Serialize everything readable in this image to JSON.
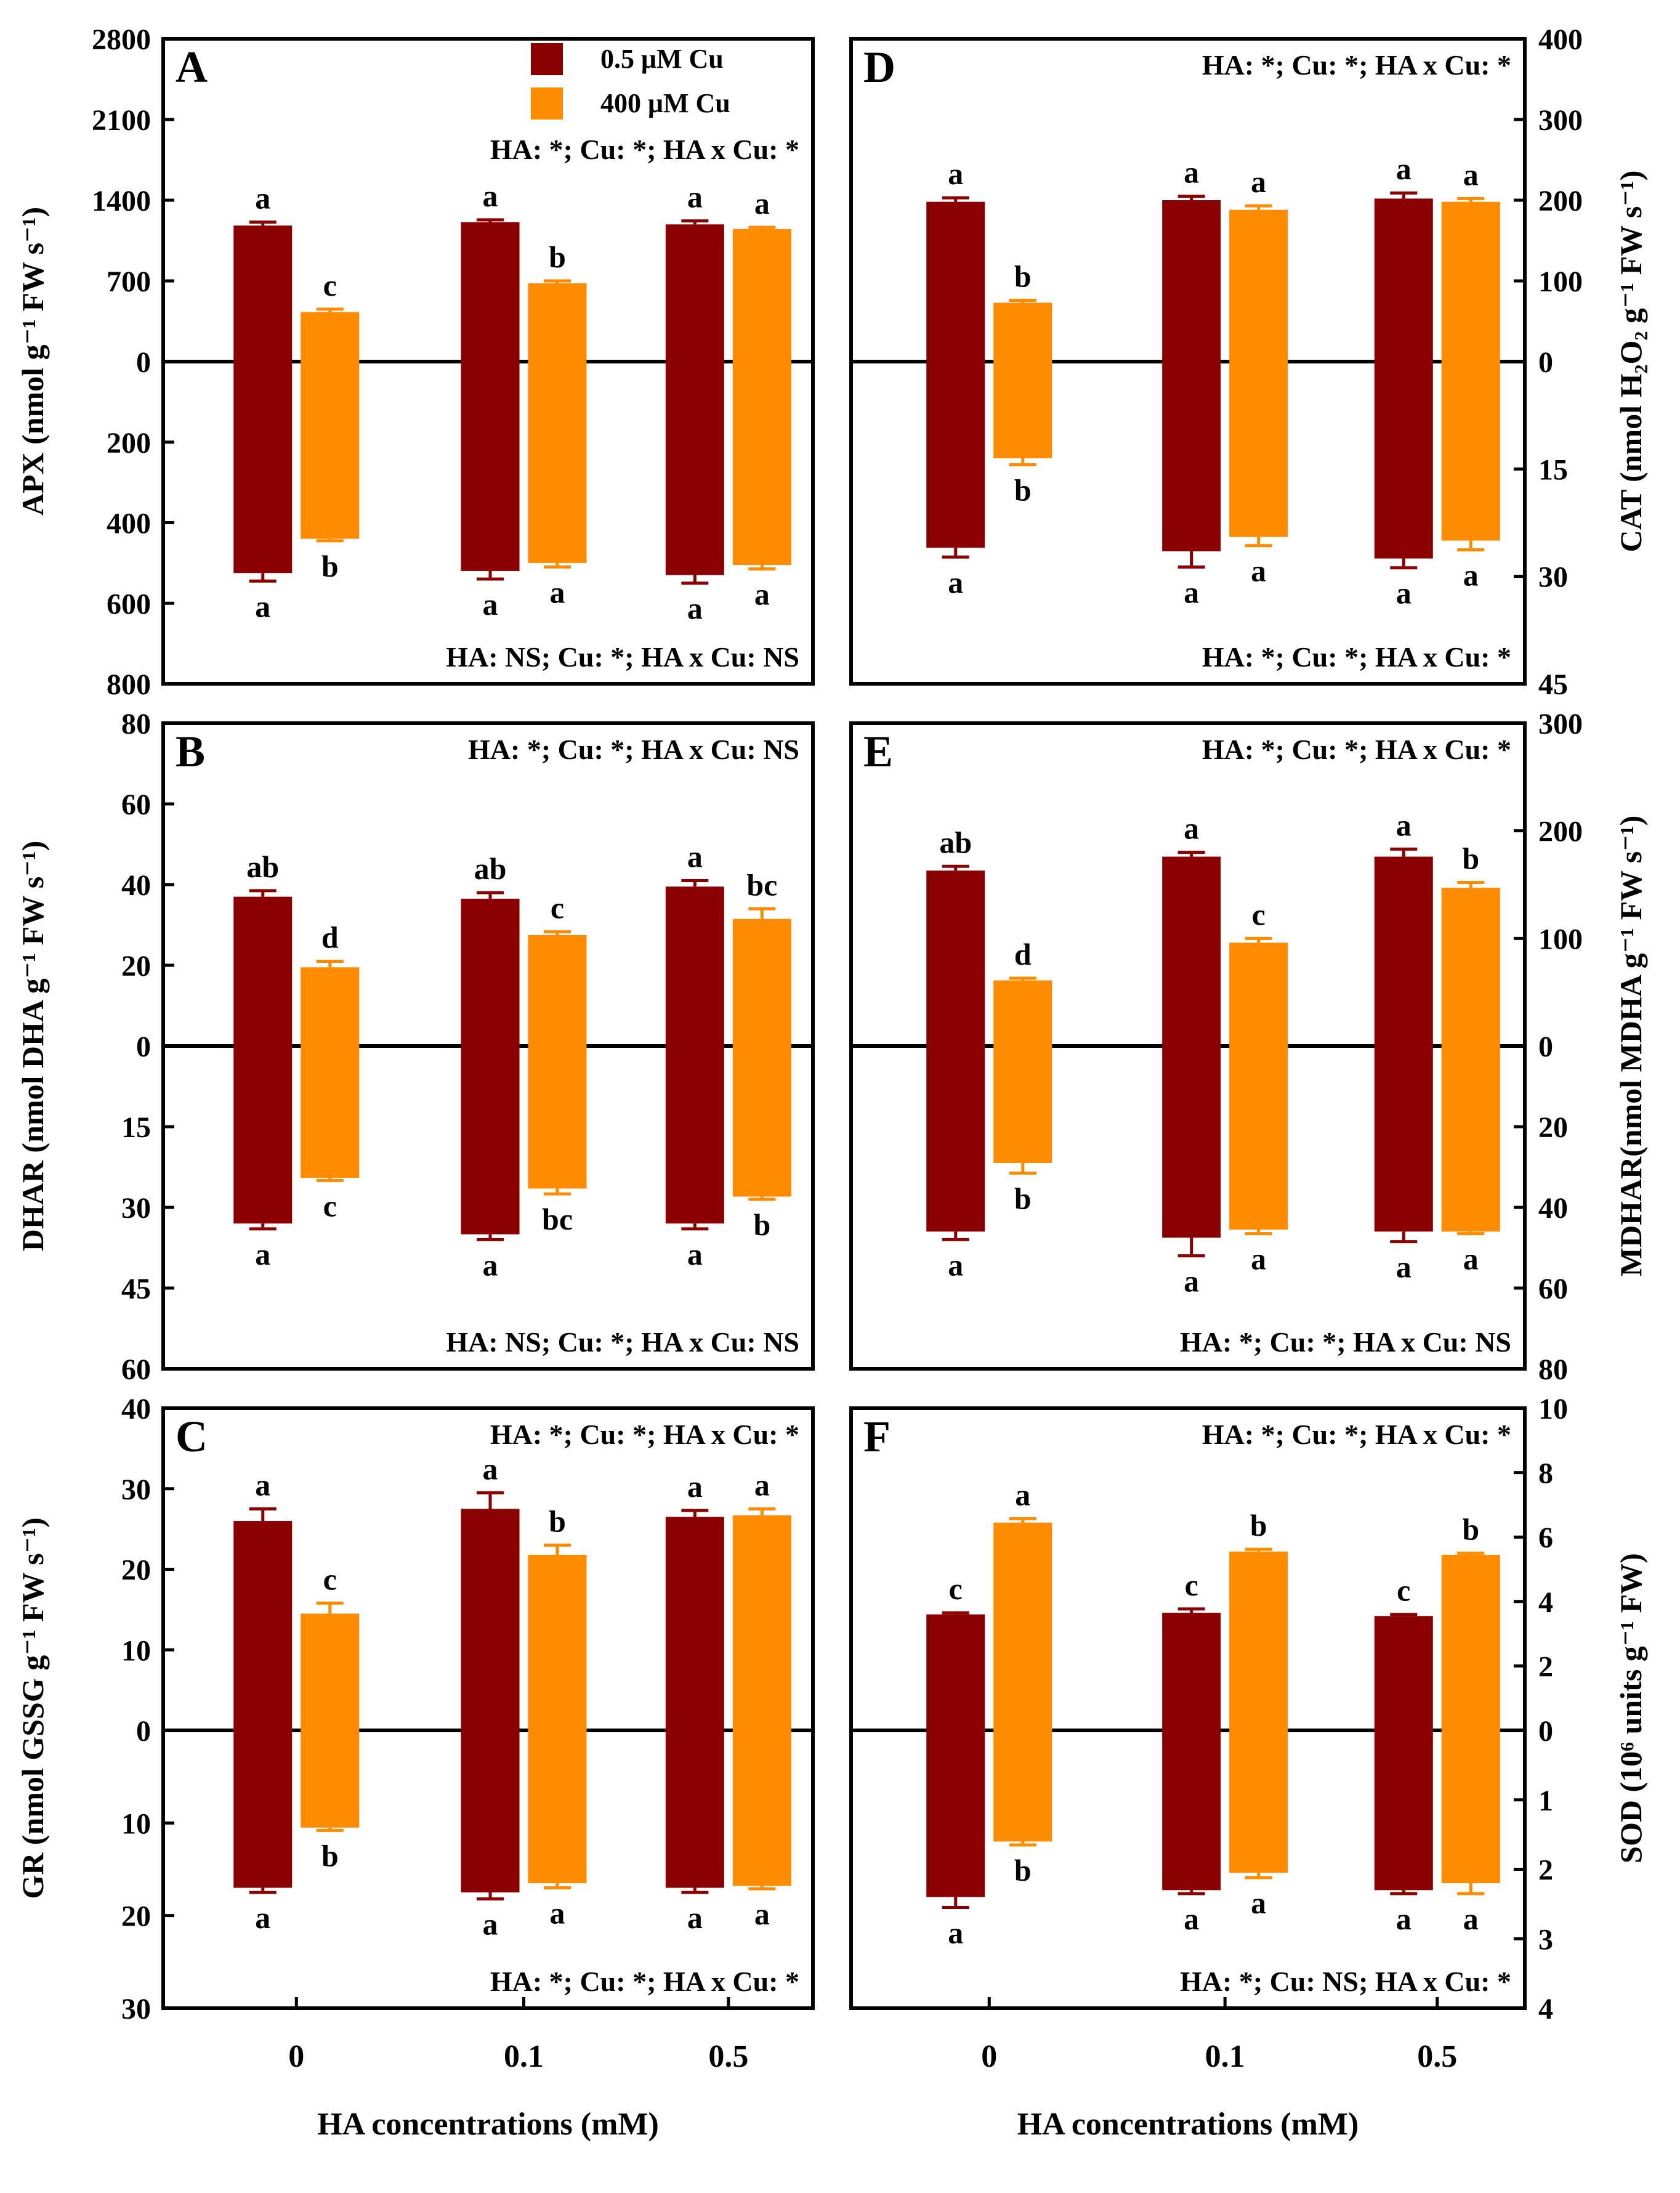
{
  "legend": [
    {
      "label": "0.5 μM Cu",
      "color": "#8B0000"
    },
    {
      "label": "400 μM Cu",
      "color": "#FF8C00"
    }
  ],
  "colors": {
    "low_cu": "#8B0000",
    "high_cu": "#FF8C00",
    "axis": "#000000"
  },
  "categories": [
    "0",
    "0.1",
    "0.5"
  ],
  "xlabel_left": "HA concentrations (mM)",
  "xlabel_right": "HA concentrations (mM)",
  "chart_data": [
    {
      "panel": "A",
      "type": "bar",
      "side": "left",
      "ylabel": "APX (nmol g⁻¹ FW s⁻¹)",
      "categories": [
        "0",
        "0.1",
        "0.5"
      ],
      "top": {
        "ylim": [
          0,
          2800
        ],
        "ticks": [
          "2800",
          "2100",
          "1400",
          "700",
          "0"
        ],
        "stats": "HA: *; Cu: *; HA x Cu: *",
        "series": [
          {
            "name": "0.5 μM Cu",
            "values": [
              1180,
              1210,
              1190
            ],
            "errors": [
              30,
              20,
              30
            ],
            "letters": [
              "a",
              "a",
              "a"
            ]
          },
          {
            "name": "400 μM Cu",
            "values": [
              430,
              680,
              1150
            ],
            "errors": [
              25,
              20,
              15
            ],
            "letters": [
              "c",
              "b",
              "a"
            ]
          }
        ]
      },
      "bottom": {
        "ylim": [
          0,
          800
        ],
        "ticks": [
          "200",
          "400",
          "600",
          "800"
        ],
        "stats": "HA: NS; Cu: *; HA x Cu: NS",
        "series": [
          {
            "name": "0.5 μM Cu",
            "values": [
              525,
              520,
              530
            ],
            "errors": [
              20,
              20,
              20
            ],
            "letters": [
              "a",
              "a",
              "a"
            ]
          },
          {
            "name": "400 μM Cu",
            "values": [
              440,
              500,
              505
            ],
            "errors": [
              5,
              10,
              10
            ],
            "letters": [
              "b",
              "a",
              "a"
            ]
          }
        ]
      }
    },
    {
      "panel": "B",
      "type": "bar",
      "side": "left",
      "ylabel": "DHAR (nmol DHA g⁻¹ FW s⁻¹)",
      "categories": [
        "0",
        "0.1",
        "0.5"
      ],
      "top": {
        "ylim": [
          0,
          80
        ],
        "ticks": [
          "80",
          "60",
          "40",
          "20",
          "0"
        ],
        "stats": "HA: *; Cu: *; HA x Cu: NS",
        "series": [
          {
            "name": "0.5 μM Cu",
            "values": [
              37,
              36.5,
              39.5
            ],
            "errors": [
              1.5,
              1.5,
              1.5
            ],
            "letters": [
              "ab",
              "ab",
              "a"
            ]
          },
          {
            "name": "400 μM Cu",
            "values": [
              19.5,
              27.5,
              31.5
            ],
            "errors": [
              1.5,
              0.8,
              2.5
            ],
            "letters": [
              "d",
              "c",
              "bc"
            ]
          }
        ]
      },
      "bottom": {
        "ylim": [
          0,
          60
        ],
        "ticks": [
          "15",
          "30",
          "45",
          "60"
        ],
        "stats": "HA: NS; Cu: *; HA x Cu: NS",
        "series": [
          {
            "name": "0.5 μM Cu",
            "values": [
              33,
              35,
              33
            ],
            "errors": [
              1,
              1,
              1
            ],
            "letters": [
              "a",
              "a",
              "a"
            ]
          },
          {
            "name": "400 μM Cu",
            "values": [
              24.5,
              26.5,
              28
            ],
            "errors": [
              0.5,
              1,
              0.5
            ],
            "letters": [
              "c",
              "bc",
              "b"
            ]
          }
        ]
      }
    },
    {
      "panel": "C",
      "type": "bar",
      "side": "left",
      "ylabel": "GR (nmol GSSG g⁻¹ FW s⁻¹)",
      "categories": [
        "0",
        "0.1",
        "0.5"
      ],
      "top": {
        "ylim": [
          0,
          40
        ],
        "ticks": [
          "40",
          "30",
          "20",
          "10",
          "0"
        ],
        "stats": "HA: *; Cu: *; HA x Cu: *",
        "series": [
          {
            "name": "0.5 μM Cu",
            "values": [
              26,
              27.5,
              26.5
            ],
            "errors": [
              1.5,
              2,
              0.8
            ],
            "letters": [
              "a",
              "a",
              "a"
            ]
          },
          {
            "name": "400 μM Cu",
            "values": [
              14.5,
              21.8,
              26.7
            ],
            "errors": [
              1.3,
              1.2,
              0.8
            ],
            "letters": [
              "c",
              "b",
              "a"
            ]
          }
        ]
      },
      "bottom": {
        "ylim": [
          0,
          30
        ],
        "ticks": [
          "10",
          "20",
          "30"
        ],
        "stats": "HA: *; Cu: *; HA x Cu: *",
        "series": [
          {
            "name": "0.5 μM Cu",
            "values": [
              17,
              17.5,
              17
            ],
            "errors": [
              0.5,
              0.7,
              0.5
            ],
            "letters": [
              "a",
              "a",
              "a"
            ]
          },
          {
            "name": "400 μM Cu",
            "values": [
              10.5,
              16.5,
              16.8
            ],
            "errors": [
              0.3,
              0.5,
              0.3
            ],
            "letters": [
              "b",
              "a",
              "a"
            ]
          }
        ]
      }
    },
    {
      "panel": "D",
      "type": "bar",
      "side": "right",
      "ylabel": "CAT (nmol H₂O₂ g⁻¹ FW s⁻¹)",
      "categories": [
        "0",
        "0.1",
        "0.5"
      ],
      "top": {
        "ylim": [
          0,
          400
        ],
        "ticks": [
          "400",
          "300",
          "200",
          "100",
          "0"
        ],
        "stats": "HA: *; Cu: *; HA x Cu: *",
        "series": [
          {
            "name": "0.5 μM Cu",
            "values": [
              198,
              200,
              202
            ],
            "errors": [
              5,
              5,
              7
            ],
            "letters": [
              "a",
              "a",
              "a"
            ]
          },
          {
            "name": "400 μM Cu",
            "values": [
              73,
              188,
              198
            ],
            "errors": [
              3,
              5,
              4
            ],
            "letters": [
              "b",
              "a",
              "a"
            ]
          }
        ]
      },
      "bottom": {
        "ylim": [
          0,
          45
        ],
        "ticks": [
          "15",
          "30",
          "45"
        ],
        "stats": "HA: *; Cu: *; HA x Cu: *",
        "series": [
          {
            "name": "0.5 μM Cu",
            "values": [
              26,
              26.5,
              27.5
            ],
            "errors": [
              1.3,
              2.2,
              1.3
            ],
            "letters": [
              "a",
              "a",
              "a"
            ]
          },
          {
            "name": "400 μM Cu",
            "values": [
              13.5,
              24.5,
              25
            ],
            "errors": [
              0.9,
              1.2,
              1.3
            ],
            "letters": [
              "b",
              "a",
              "a"
            ]
          }
        ]
      }
    },
    {
      "panel": "E",
      "type": "bar",
      "side": "right",
      "ylabel": "MDHAR(nmol MDHA g⁻¹ FW s⁻¹)",
      "categories": [
        "0",
        "0.1",
        "0.5"
      ],
      "top": {
        "ylim": [
          0,
          300
        ],
        "ticks": [
          "300",
          "200",
          "100",
          "0"
        ],
        "stats": "HA: *; Cu: *; HA x Cu: *",
        "series": [
          {
            "name": "0.5 μM Cu",
            "values": [
              163,
              176,
              176
            ],
            "errors": [
              4,
              4,
              7
            ],
            "letters": [
              "ab",
              "a",
              "a"
            ]
          },
          {
            "name": "400 μM Cu",
            "values": [
              61,
              96,
              147
            ],
            "errors": [
              2,
              4,
              5
            ],
            "letters": [
              "d",
              "c",
              "b"
            ]
          }
        ]
      },
      "bottom": {
        "ylim": [
          0,
          80
        ],
        "ticks": [
          "20",
          "40",
          "60",
          "80"
        ],
        "stats": "HA: *; Cu: *; HA x Cu: NS",
        "series": [
          {
            "name": "0.5 μM Cu",
            "values": [
              46,
              47.5,
              46
            ],
            "errors": [
              2,
              4.5,
              2.5
            ],
            "letters": [
              "a",
              "a",
              "a"
            ]
          },
          {
            "name": "400 μM Cu",
            "values": [
              29,
              45.5,
              46
            ],
            "errors": [
              2.5,
              1,
              0.5
            ],
            "letters": [
              "b",
              "a",
              "a"
            ]
          }
        ]
      }
    },
    {
      "panel": "F",
      "type": "bar",
      "side": "right",
      "ylabel": "SOD (10⁶ units g⁻¹ FW)",
      "categories": [
        "0",
        "0.1",
        "0.5"
      ],
      "top": {
        "ylim": [
          0,
          10
        ],
        "ticks": [
          "10",
          "8",
          "6",
          "4",
          "2",
          "0"
        ],
        "stats": "HA: *; Cu: *; HA x Cu: *",
        "series": [
          {
            "name": "0.5 μM Cu",
            "values": [
              3.6,
              3.65,
              3.55
            ],
            "errors": [
              0.05,
              0.12,
              0.05
            ],
            "letters": [
              "c",
              "c",
              "c"
            ]
          },
          {
            "name": "400 μM Cu",
            "values": [
              6.45,
              5.55,
              5.45
            ],
            "errors": [
              0.12,
              0.07,
              0.05
            ],
            "letters": [
              "a",
              "b",
              "b"
            ]
          }
        ]
      },
      "bottom": {
        "ylim": [
          0,
          4
        ],
        "ticks": [
          "1",
          "2",
          "3",
          "4"
        ],
        "stats": "HA: *; Cu: NS; HA x Cu: *",
        "series": [
          {
            "name": "0.5 μM Cu",
            "values": [
              2.4,
              2.3,
              2.3
            ],
            "errors": [
              0.15,
              0.05,
              0.05
            ],
            "letters": [
              "a",
              "a",
              "a"
            ]
          },
          {
            "name": "400 μM Cu",
            "values": [
              1.6,
              2.05,
              2.2
            ],
            "errors": [
              0.05,
              0.07,
              0.15
            ],
            "letters": [
              "b",
              "a",
              "a"
            ]
          }
        ]
      }
    }
  ]
}
